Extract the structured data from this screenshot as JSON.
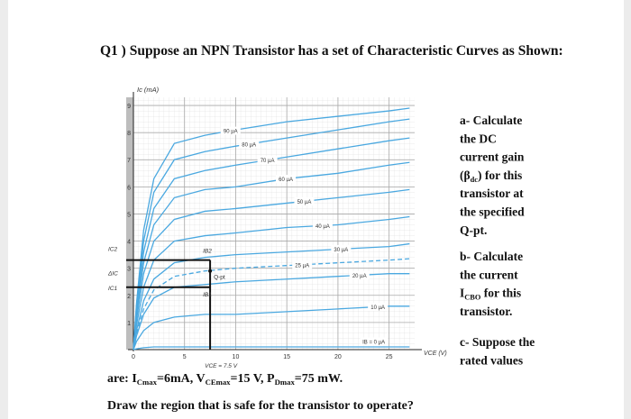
{
  "question": {
    "title": "Q1 ) Suppose an NPN Transistor has a set of Characteristic Curves as Shown:",
    "side": [
      {
        "lines": [
          [
            "a- Calculate"
          ],
          [
            "the DC"
          ],
          [
            "current gain"
          ],
          [
            "(β",
            "dc",
            ") for this"
          ],
          [
            "transistor at"
          ],
          [
            "the specified"
          ],
          [
            "Q-pt."
          ]
        ]
      },
      {
        "lines": [
          [
            "b- Calculate"
          ],
          [
            "the current"
          ],
          [
            "I",
            "CBO",
            " for this"
          ],
          [
            "transistor."
          ]
        ]
      },
      {
        "lines": [
          [
            "c- Suppose the"
          ],
          [
            "rated values"
          ]
        ]
      }
    ],
    "bottom": [
      [
        "are: I",
        "Cmax",
        "=6mA, V",
        "CEmax",
        "=15 V, P",
        "Dmax",
        "=75 mW."
      ],
      [
        "Draw the region that is safe for the transistor to operate?"
      ]
    ]
  },
  "figure": {
    "y_label": "Ic (mA)",
    "x_label": "VCE (V)",
    "xlim": [
      0,
      27.5
    ],
    "ylim": [
      0,
      9.3
    ],
    "xticks": [
      0,
      5,
      10,
      15,
      20,
      25
    ],
    "yticks": [
      1,
      2,
      3,
      4,
      5,
      6,
      7,
      8,
      9
    ],
    "color": "#4aa8e0",
    "x": [
      0.3,
      1,
      2,
      4,
      7,
      10,
      15,
      20,
      25,
      27
    ],
    "curves": [
      {
        "name": "90 µA",
        "values": [
          1.7,
          4.4,
          6.3,
          7.6,
          7.9,
          8.1,
          8.4,
          8.6,
          8.8,
          8.9
        ]
      },
      {
        "name": "80 µA",
        "values": [
          1.6,
          4.0,
          5.8,
          7.0,
          7.3,
          7.5,
          7.8,
          8.1,
          8.4,
          8.5
        ]
      },
      {
        "name": "70 µA",
        "values": [
          1.4,
          3.6,
          5.2,
          6.3,
          6.6,
          6.8,
          7.1,
          7.4,
          7.7,
          7.8
        ]
      },
      {
        "name": "60 µA",
        "values": [
          1.3,
          3.2,
          4.6,
          5.6,
          5.9,
          6.0,
          6.3,
          6.5,
          6.8,
          6.9
        ]
      },
      {
        "name": "50 µA",
        "values": [
          1.1,
          2.8,
          4.0,
          4.8,
          5.1,
          5.2,
          5.4,
          5.6,
          5.8,
          5.9
        ]
      },
      {
        "name": "40 µA",
        "values": [
          0.9,
          2.3,
          3.3,
          4.0,
          4.2,
          4.3,
          4.5,
          4.6,
          4.8,
          4.9
        ]
      },
      {
        "name": "30 µA",
        "values": [
          0.7,
          1.8,
          2.6,
          3.2,
          3.4,
          3.5,
          3.6,
          3.7,
          3.8,
          3.9
        ]
      },
      {
        "name": "25 µA",
        "dashed": true,
        "values": [
          0.6,
          1.5,
          2.2,
          2.7,
          2.9,
          3.0,
          3.1,
          3.2,
          3.3,
          3.35
        ]
      },
      {
        "name": "20 µA",
        "values": [
          0.5,
          1.3,
          1.9,
          2.3,
          2.4,
          2.5,
          2.6,
          2.7,
          2.8,
          2.8
        ]
      },
      {
        "name": "10 µA",
        "values": [
          0.3,
          0.7,
          1.0,
          1.2,
          1.3,
          1.3,
          1.4,
          1.5,
          1.6,
          1.6
        ]
      },
      {
        "name": "IB = 0 µA",
        "values": [
          0.03,
          0.07,
          0.1,
          0.1,
          0.1,
          0.1,
          0.1,
          0.1,
          0.1,
          0.1
        ]
      }
    ],
    "q_point": {
      "label": "Q-pt",
      "x": 7.5,
      "y": 2.9
    },
    "box": {
      "ic_low": 2.3,
      "ic_high": 3.3
    },
    "labels": {
      "vce_q": "VCE = 7.5 V",
      "ic_high": "IC2",
      "ic_low": "IC1",
      "delta": "ΔIC",
      "ib_high": "IB2",
      "ib_low": "IB1"
    }
  }
}
